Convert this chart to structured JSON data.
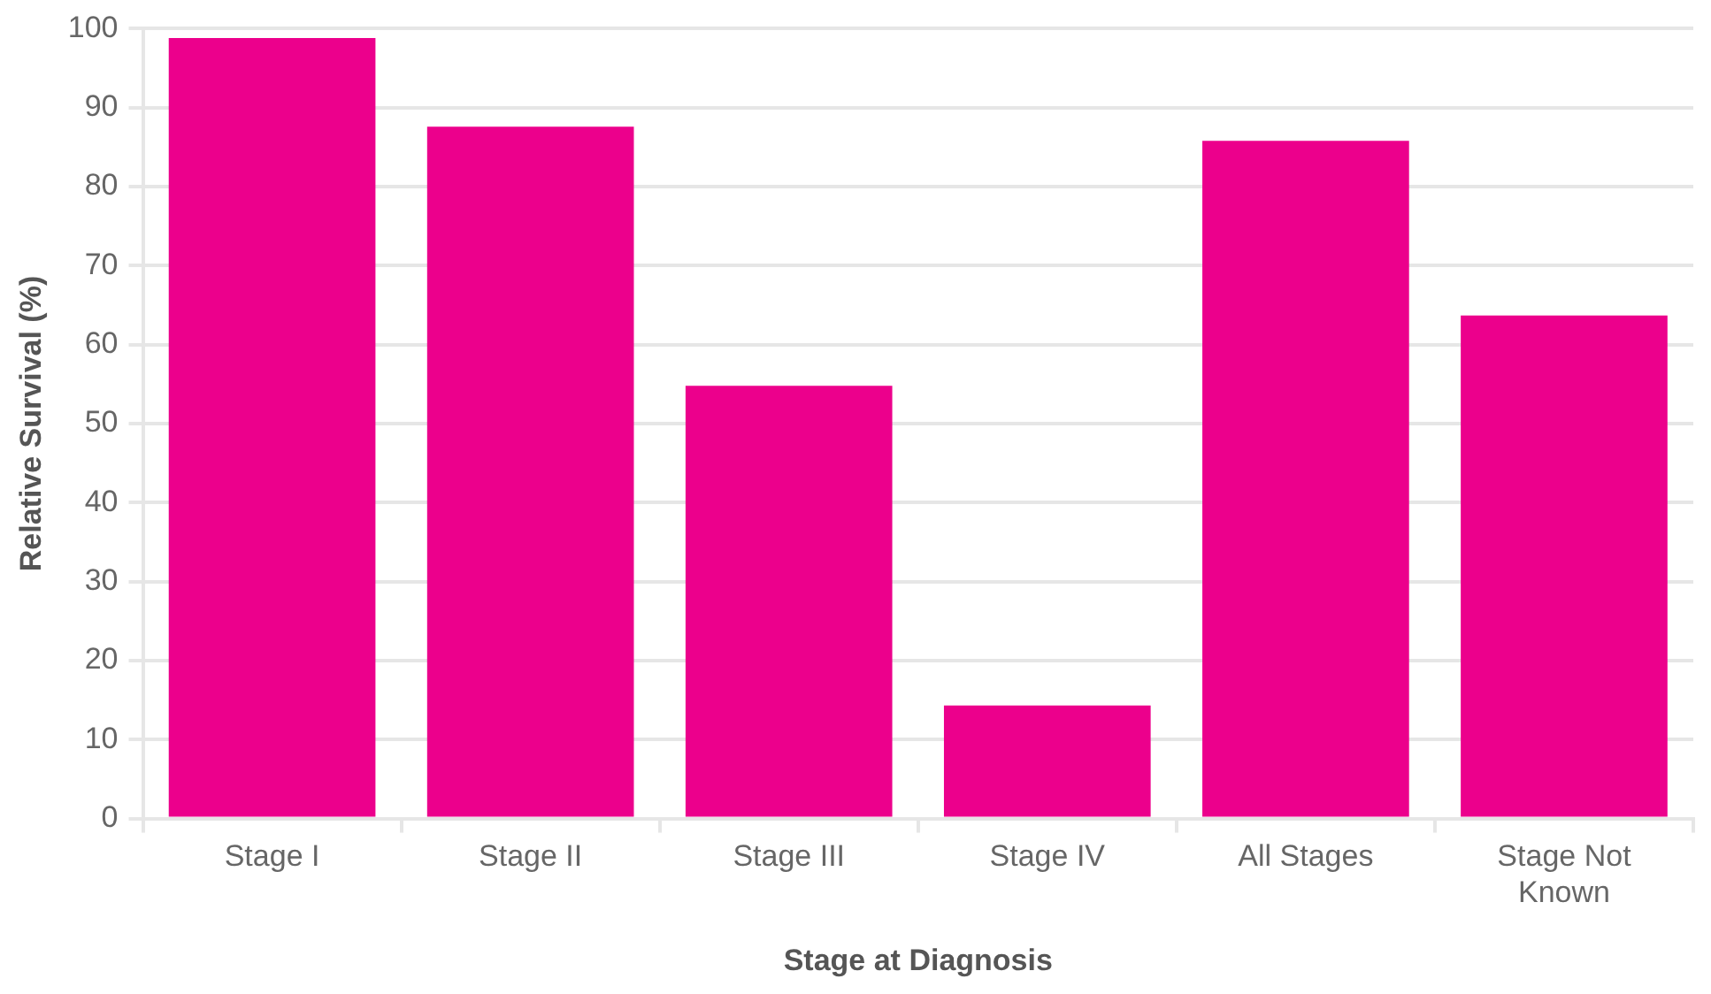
{
  "chart_data": {
    "type": "bar",
    "xlabel": "Stage at Diagnosis",
    "ylabel": "Relative Survival (%)",
    "categories": [
      "Stage I",
      "Stage II",
      "Stage III",
      "Stage IV",
      "All Stages",
      "Stage Not Known"
    ],
    "values": [
      98.8,
      87.6,
      54.8,
      14.3,
      85.8,
      63.7
    ],
    "color": "#ec008c",
    "ylim": [
      0,
      100
    ],
    "yticks": [
      0,
      10,
      20,
      30,
      40,
      50,
      60,
      70,
      80,
      90,
      100
    ],
    "grid": "y"
  }
}
